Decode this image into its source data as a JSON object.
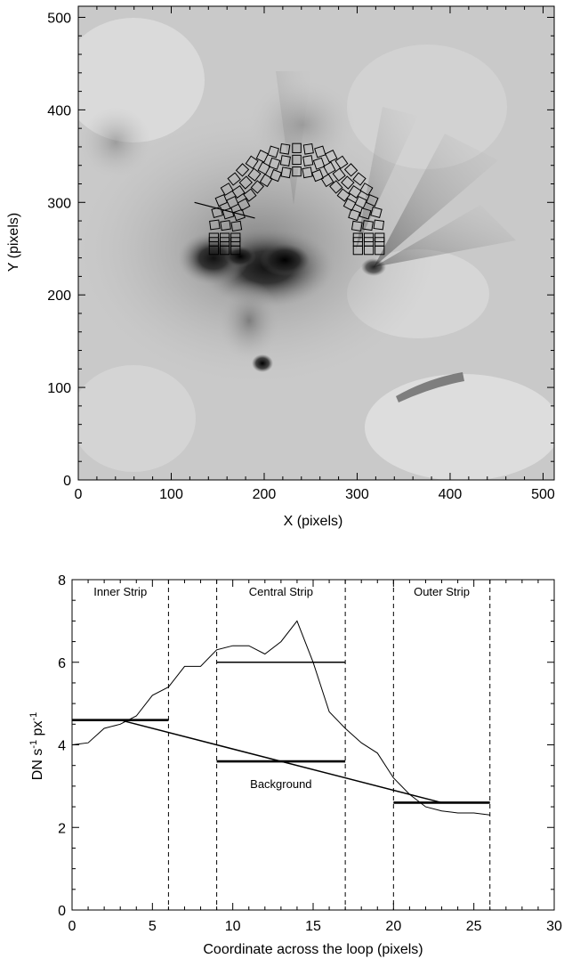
{
  "chart_data": [
    {
      "type": "image",
      "xlabel": "X (pixels)",
      "ylabel": "Y (pixels)",
      "xlim": [
        0,
        512
      ],
      "ylim": [
        0,
        512
      ],
      "xticks": [
        0,
        100,
        200,
        300,
        400,
        500
      ],
      "yticks": [
        0,
        100,
        200,
        300,
        400,
        500
      ],
      "colormap": "grayscale-inverted",
      "loop_strips": {
        "count": 3,
        "left_footpoint_x_range": [
          140,
          175
        ],
        "right_footpoint_x_range": [
          295,
          330
        ],
        "apex_y_range": [
          340,
          365
        ]
      },
      "cross_cut_line": [
        {
          "x": 125,
          "y": 300
        },
        {
          "x": 190,
          "y": 283
        }
      ]
    },
    {
      "type": "line",
      "xlabel": "Coordinate across the loop (pixels)",
      "ylabel": "DN s-1 px-1",
      "ylabel_parts": {
        "base1": "DN s",
        "sup1": "-1",
        "base2": " px",
        "sup2": "-1"
      },
      "xlim": [
        0,
        30
      ],
      "ylim": [
        0,
        8
      ],
      "xticks": [
        0,
        5,
        10,
        15,
        20,
        25,
        30
      ],
      "yticks": [
        0,
        2,
        4,
        6,
        8
      ],
      "series": [
        {
          "x": [
            0,
            1,
            2,
            3,
            4,
            5,
            6,
            7,
            8,
            9,
            10,
            11,
            12,
            13,
            14,
            15,
            16,
            17,
            18,
            19,
            20,
            21,
            22,
            23,
            24,
            25,
            26
          ],
          "y": [
            4.0,
            4.05,
            4.4,
            4.5,
            4.7,
            5.2,
            5.4,
            5.9,
            5.9,
            6.3,
            6.4,
            6.4,
            6.2,
            6.5,
            7.0,
            6.0,
            4.8,
            4.4,
            4.05,
            3.8,
            3.2,
            2.8,
            2.5,
            2.4,
            2.35,
            2.35,
            2.3
          ]
        }
      ],
      "strips": [
        {
          "label": "Inner Strip",
          "x_start": 0,
          "x_end": 6,
          "level": 4.6
        },
        {
          "label": "Central Strip",
          "x_start": 9,
          "x_end": 17,
          "level": 6.0
        },
        {
          "label": "Outer Strip",
          "x_start": 20,
          "x_end": 26,
          "level": 2.6
        }
      ],
      "strip_dividers_x": [
        6,
        9,
        17,
        20,
        26
      ],
      "background": {
        "label": "Background",
        "central_level": 3.6,
        "central_x_range": [
          9,
          17
        ],
        "line": [
          {
            "x": 3,
            "y": 4.6
          },
          {
            "x": 23,
            "y": 2.6
          }
        ]
      }
    }
  ]
}
